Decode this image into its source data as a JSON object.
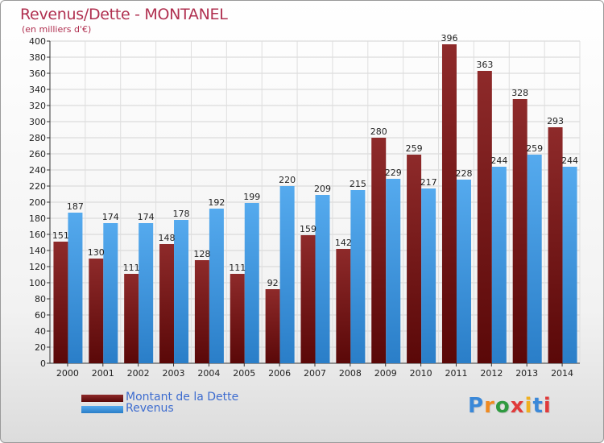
{
  "title": "Revenus/Dette - MONTANEL",
  "subtitle": "(en milliers d'€)",
  "logo": {
    "text": "Proxiti",
    "letter_colors": [
      "#3a88d8",
      "#f08a20",
      "#2f9a40",
      "#e03a3a",
      "#f0b020",
      "#3a88d8",
      "#e03a3a"
    ]
  },
  "chart_data": {
    "type": "bar",
    "title": "Revenus/Dette - MONTANEL",
    "subtitle": "(en milliers d'€)",
    "categories": [
      "2000",
      "2001",
      "2002",
      "2003",
      "2004",
      "2005",
      "2006",
      "2007",
      "2008",
      "2009",
      "2010",
      "2011",
      "2012",
      "2013",
      "2014"
    ],
    "series": [
      {
        "name": "Montant de la Dette",
        "color": "#7a1a1a",
        "values": [
          151,
          130,
          111,
          148,
          128,
          111,
          92,
          159,
          142,
          280,
          259,
          396,
          363,
          328,
          293
        ]
      },
      {
        "name": "Revenus",
        "color": "#4aa0e8",
        "values": [
          187,
          174,
          174,
          178,
          192,
          199,
          220,
          209,
          215,
          229,
          217,
          228,
          244,
          259,
          244
        ]
      }
    ],
    "ylim": [
      0,
      400
    ],
    "yticks": [
      0,
      20,
      40,
      60,
      80,
      100,
      120,
      140,
      160,
      180,
      200,
      220,
      240,
      260,
      280,
      300,
      320,
      340,
      360,
      380,
      400
    ],
    "grid": true,
    "legend": "bottom-left"
  }
}
